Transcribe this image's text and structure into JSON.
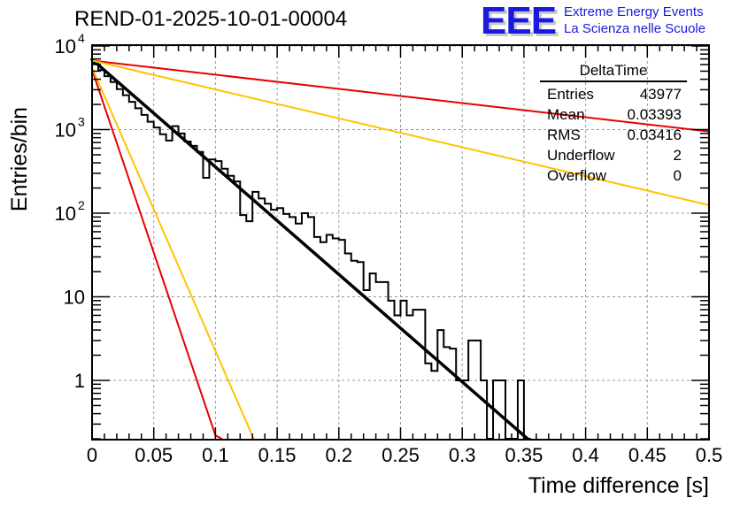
{
  "header": {
    "title": "REND-01-2025-10-01-00004",
    "logo_text": "EEE",
    "logo_line1": "Extreme Energy Events",
    "logo_line2": "La Scienza nelle Scuole",
    "logo_color": "#1a1adc"
  },
  "stats_box": {
    "title": "DeltaTime",
    "rows": [
      {
        "label": "Entries",
        "value": "43977"
      },
      {
        "label": "Mean",
        "value": "0.03393"
      },
      {
        "label": "RMS",
        "value": "0.03416"
      },
      {
        "label": "Underflow",
        "value": "2"
      },
      {
        "label": "Overflow",
        "value": "0"
      }
    ]
  },
  "chart_data": {
    "type": "bar",
    "title": "REND-01-2025-10-01-00004",
    "xlabel": "Time difference [s]",
    "ylabel": "Entries/bin",
    "xlim": [
      0,
      0.5
    ],
    "ylim": [
      0.2,
      10000
    ],
    "yscale": "log",
    "grid": true,
    "bin_width": 0.005,
    "x_ticks": [
      "0",
      "0.05",
      "0.1",
      "0.15",
      "0.2",
      "0.25",
      "0.3",
      "0.35",
      "0.4",
      "0.45",
      "0.5"
    ],
    "x_tick_values": [
      0,
      0.05,
      0.1,
      0.15,
      0.2,
      0.25,
      0.3,
      0.35,
      0.4,
      0.45,
      0.5
    ],
    "y_ticks": [
      {
        "value": 1,
        "label": "1",
        "exp": ""
      },
      {
        "value": 10,
        "label": "10",
        "exp": ""
      },
      {
        "value": 100,
        "label": "10",
        "exp": "2"
      },
      {
        "value": 1000,
        "label": "10",
        "exp": "3"
      },
      {
        "value": 10000,
        "label": "10",
        "exp": "4"
      }
    ],
    "histogram": {
      "name": "DeltaTime",
      "color": "#000000",
      "bin_edges_start": 0,
      "values": [
        6200,
        5150,
        4350,
        3700,
        3050,
        2580,
        2150,
        1800,
        1500,
        1240,
        1060,
        880,
        740,
        620,
        520,
        440,
        370,
        310,
        265,
        220,
        185,
        155,
        130,
        112,
        95,
        80,
        66,
        56,
        47,
        39,
        33,
        28,
        23,
        20,
        17,
        14,
        12,
        10,
        8.5,
        7,
        6,
        5,
        4,
        4,
        4.2,
        3,
        2,
        1,
        2,
        3,
        0,
        1,
        0,
        1,
        1,
        0,
        0,
        1,
        0,
        0,
        0,
        0,
        0,
        0,
        0,
        0,
        0,
        0,
        0,
        0,
        0,
        0,
        0,
        0,
        0,
        0,
        0,
        0,
        0,
        0,
        0,
        0,
        0,
        0,
        0,
        0,
        0,
        0,
        0,
        0,
        0,
        0,
        0,
        0,
        0,
        0,
        0,
        0,
        0,
        0
      ]
    },
    "histogram_override": [
      [
        0.065,
        1100
      ],
      [
        0.07,
        900
      ],
      [
        0.075,
        720
      ],
      [
        0.08,
        640
      ],
      [
        0.085,
        540
      ],
      [
        0.095,
        440
      ],
      [
        0.1,
        420
      ],
      [
        0.105,
        340
      ],
      [
        0.11,
        280
      ],
      [
        0.115,
        240
      ],
      [
        0.13,
        180
      ],
      [
        0.135,
        150
      ],
      [
        0.14,
        130
      ],
      [
        0.145,
        110
      ],
      [
        0.15,
        115
      ],
      [
        0.155,
        98
      ],
      [
        0.16,
        90
      ],
      [
        0.165,
        75
      ],
      [
        0.17,
        100
      ],
      [
        0.175,
        90
      ],
      [
        0.18,
        52
      ],
      [
        0.185,
        45
      ],
      [
        0.19,
        55
      ],
      [
        0.195,
        50
      ],
      [
        0.2,
        48
      ],
      [
        0.205,
        33
      ],
      [
        0.21,
        27
      ],
      [
        0.215,
        26
      ],
      [
        0.22,
        12
      ],
      [
        0.225,
        19
      ],
      [
        0.23,
        15
      ],
      [
        0.235,
        15
      ],
      [
        0.24,
        9
      ],
      [
        0.245,
        6
      ],
      [
        0.25,
        9
      ],
      [
        0.255,
        6
      ],
      [
        0.26,
        7
      ],
      [
        0.265,
        7
      ],
      [
        0.27,
        1.6
      ],
      [
        0.275,
        1.3
      ],
      [
        0.28,
        4
      ],
      [
        0.285,
        2.5
      ],
      [
        0.29,
        2.4
      ],
      [
        0.295,
        1
      ],
      [
        0.3,
        1
      ],
      [
        0.305,
        3
      ],
      [
        0.31,
        3
      ],
      [
        0.315,
        1
      ],
      [
        0.32,
        0.2
      ],
      [
        0.325,
        1
      ],
      [
        0.33,
        1
      ],
      [
        0.335,
        0.2
      ],
      [
        0.34,
        0.2
      ],
      [
        0.345,
        1
      ],
      [
        0.35,
        0.2
      ]
    ],
    "fits": [
      {
        "name": "exp fit",
        "color": "#000000",
        "width": 3.5,
        "t0": 0,
        "y0": 6900,
        "t1": 0.353,
        "y1": 0.2
      },
      {
        "name": "red shallow",
        "color": "#e60000",
        "width": 2,
        "t0": 0,
        "y0": 6700,
        "t1": 0.5,
        "y1": 950
      },
      {
        "name": "yellow shallow",
        "color": "#ffc300",
        "width": 2,
        "t0": 0,
        "y0": 6700,
        "t1": 0.5,
        "y1": 125
      },
      {
        "name": "red steep",
        "color": "#e60000",
        "width": 2,
        "t0": 0,
        "y0": 5200,
        "t1": 0.1,
        "y1": 0.22,
        "tail": [
          0.105,
          0.2
        ]
      },
      {
        "name": "yellow steep",
        "color": "#ffc300",
        "width": 2,
        "t0": 0,
        "y0": 5500,
        "t1": 0.131,
        "y1": 0.2
      }
    ]
  }
}
